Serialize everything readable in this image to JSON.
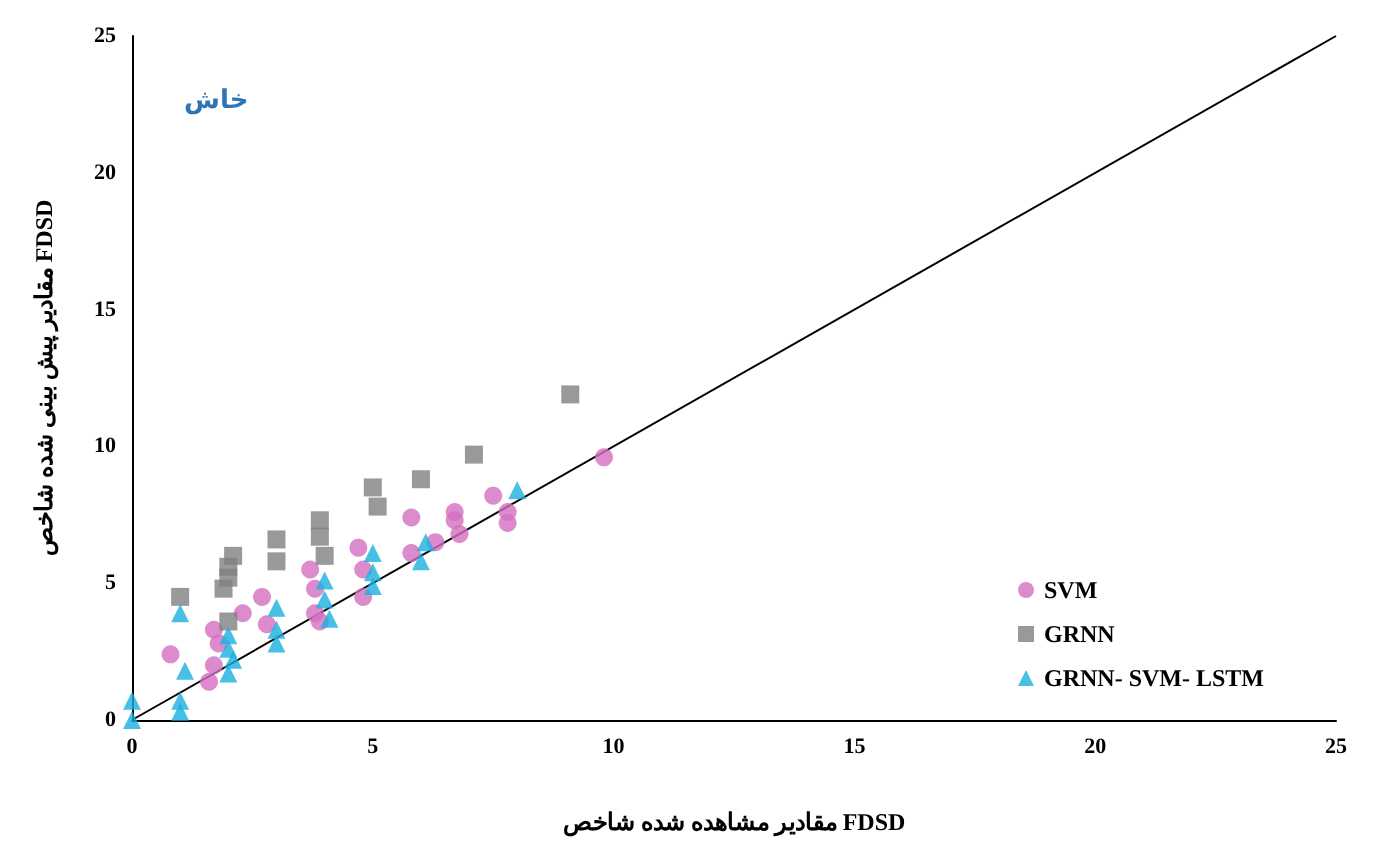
{
  "chart_data": {
    "type": "scatter",
    "xlabel": "مقادیر مشاهده شده شاخص FDSD",
    "ylabel": "مقادیر پیش بینی شده شاخص FDSD",
    "annotations": [
      "خاش"
    ],
    "xlim": [
      0,
      25
    ],
    "xticks": [
      0,
      5,
      10,
      15,
      20,
      25
    ],
    "ylim": [
      0,
      25
    ],
    "yticks": [
      0,
      5,
      10,
      15,
      20,
      25
    ],
    "grid": false,
    "legend": "bottom right",
    "series": [
      {
        "name": "SVM",
        "color": "#d36fc0",
        "marker": "circle",
        "x": [
          0.8,
          1.7,
          1.8,
          1.7,
          1.6,
          2.3,
          2.7,
          2.8,
          3.7,
          3.8,
          3.8,
          3.9,
          4.7,
          4.8,
          4.8,
          5.8,
          5.8,
          6.3,
          6.7,
          6.7,
          6.8,
          7.5,
          7.8,
          7.8,
          9.8
        ],
        "values": [
          2.4,
          3.3,
          2.8,
          2.0,
          1.4,
          3.9,
          4.5,
          3.5,
          5.5,
          4.8,
          3.9,
          3.6,
          6.3,
          5.5,
          4.5,
          7.4,
          6.1,
          6.5,
          7.6,
          7.3,
          6.8,
          8.2,
          7.6,
          7.2,
          9.6
        ]
      },
      {
        "name": "GRNN",
        "color": "#7f7f7f",
        "marker": "square",
        "x": [
          1.0,
          2.1,
          2.0,
          2.0,
          1.9,
          2.0,
          3.0,
          3.0,
          3.9,
          3.9,
          4.0,
          5.0,
          5.1,
          6.0,
          7.1,
          9.1
        ],
        "values": [
          4.5,
          6.0,
          5.6,
          5.2,
          4.8,
          3.6,
          6.6,
          5.8,
          7.3,
          6.7,
          6.0,
          8.5,
          7.8,
          8.8,
          9.7,
          11.9
        ]
      },
      {
        "name": "GRNN- SVM- LSTM",
        "color": "#1ab0e0",
        "marker": "triangle",
        "x": [
          0,
          0,
          1.0,
          1.1,
          1.0,
          1.0,
          2.0,
          2.0,
          2.1,
          2.0,
          3.0,
          3.0,
          3.0,
          4.0,
          4.0,
          4.1,
          5.0,
          5.0,
          5.0,
          6.0,
          6.1,
          8.0
        ],
        "values": [
          0.7,
          0,
          3.9,
          1.8,
          0.7,
          0.3,
          3.1,
          2.6,
          2.2,
          1.7,
          4.1,
          3.3,
          2.8,
          5.1,
          4.4,
          3.7,
          6.1,
          5.4,
          4.9,
          5.8,
          6.5,
          8.4
        ]
      },
      {
        "type": "line",
        "color": "#000000",
        "marker": "none",
        "line_style": "solid",
        "x": [
          0,
          25
        ],
        "values": [
          0,
          25
        ]
      }
    ]
  }
}
